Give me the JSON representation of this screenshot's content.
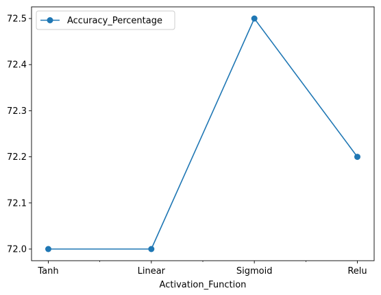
{
  "chart_data": {
    "type": "line",
    "categories": [
      "Tanh",
      "Linear",
      "Sigmoid",
      "Relu"
    ],
    "series": [
      {
        "name": "Accuracy_Percentage",
        "values": [
          72.0,
          72.0,
          72.5,
          72.2
        ],
        "color": "#1f77b4",
        "marker": "circle"
      }
    ],
    "xlabel": "Activation_Function",
    "ylabel": "",
    "ylim": [
      72.0,
      72.5
    ],
    "y_ticks": [
      "72.0",
      "72.1",
      "72.2",
      "72.3",
      "72.4",
      "72.5"
    ],
    "x_minor_ticks": true,
    "grid": false,
    "legend": {
      "position": "upper-left"
    }
  }
}
